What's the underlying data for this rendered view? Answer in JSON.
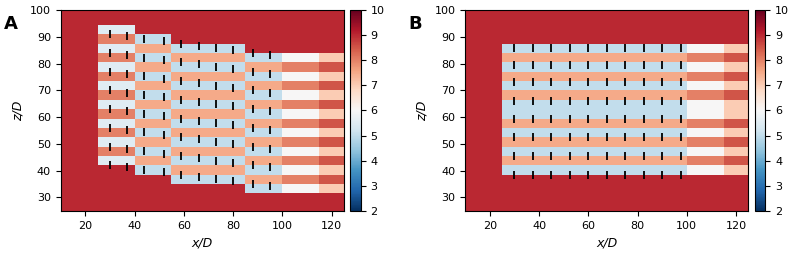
{
  "chart_data": [
    {
      "type": "heatmap",
      "title": "A",
      "x_label": "x/D",
      "y_label": "z/D",
      "xlim": [
        10,
        125
      ],
      "ylim": [
        25,
        100
      ],
      "xticks": [
        20,
        40,
        60,
        80,
        100,
        120
      ],
      "yticks": [
        30,
        40,
        50,
        60,
        70,
        80,
        90,
        100
      ],
      "color": "RdBu_r",
      "colorbar_range": [
        2,
        10
      ],
      "colorbar_ticks": [
        2,
        3,
        4,
        5,
        6,
        7,
        8,
        9,
        10
      ],
      "x_edges": [
        10,
        25,
        40,
        55,
        70,
        85,
        100,
        115,
        125
      ],
      "y_edges": [
        24.5,
        28,
        31.5,
        35,
        38.5,
        42,
        45.5,
        49,
        52.5,
        56,
        59.5,
        63,
        66.5,
        70,
        73.5,
        77,
        80.5,
        84,
        87.5,
        91,
        94.5,
        98,
        101.5
      ],
      "cells": [
        [
          9,
          9,
          9,
          9,
          9,
          9,
          9,
          9
        ],
        [
          9,
          9,
          9,
          9,
          9,
          9,
          9,
          9
        ],
        [
          9,
          9,
          9,
          9,
          9,
          5,
          6,
          7
        ],
        [
          9,
          9,
          9,
          5,
          5,
          7.5,
          8,
          8.5
        ],
        [
          9,
          9,
          5,
          7.5,
          7.5,
          5,
          6,
          7
        ],
        [
          9,
          5.5,
          7.5,
          5,
          5,
          7.5,
          8,
          8.5
        ],
        [
          9,
          8,
          5,
          7.5,
          7.5,
          5,
          6,
          7
        ],
        [
          9,
          5.5,
          7.5,
          5,
          5,
          7.5,
          8,
          8.5
        ],
        [
          9,
          8,
          5,
          7.5,
          7.5,
          5,
          6,
          7
        ],
        [
          9,
          5.5,
          7.5,
          5,
          5,
          7.5,
          8,
          8.5
        ],
        [
          9,
          8,
          5,
          7.5,
          7.5,
          5,
          6,
          7
        ],
        [
          9,
          5.5,
          7.5,
          5,
          5,
          7.5,
          8,
          8.5
        ],
        [
          9,
          8,
          5,
          7.5,
          7.5,
          5,
          6,
          7
        ],
        [
          9,
          5.5,
          7.5,
          5,
          5,
          7.5,
          8,
          8.5
        ],
        [
          9,
          8,
          5,
          7.5,
          7.5,
          5,
          6,
          7
        ],
        [
          9,
          5.5,
          7.5,
          5,
          5,
          7.5,
          8,
          8.5
        ],
        [
          9,
          8,
          5,
          7.5,
          7.5,
          5,
          6,
          7
        ],
        [
          9,
          5.5,
          7.5,
          5,
          5,
          9,
          9,
          9
        ],
        [
          9,
          8,
          5,
          9,
          9,
          9,
          9,
          9
        ],
        [
          9,
          5.5,
          9,
          9,
          9,
          9,
          9,
          9
        ],
        [
          9,
          9,
          9,
          9,
          9,
          9,
          9,
          9
        ],
        [
          9,
          9,
          9,
          9,
          9,
          9,
          9,
          9
        ]
      ],
      "turbines": {
        "marker": "|",
        "color": "#000000",
        "x": [
          30,
          37,
          44,
          52,
          59,
          66,
          73,
          80,
          88,
          95
        ],
        "y": [
          [
            91,
            90.2,
            89.3,
            88.4,
            87.5,
            86.7,
            85.8,
            85,
            84,
            83.2
          ],
          [
            84,
            83.2,
            82.3,
            81.4,
            80.5,
            79.7,
            78.8,
            78,
            77,
            76.2
          ],
          [
            77,
            76.2,
            75.3,
            74.4,
            73.5,
            72.7,
            71.8,
            71,
            70,
            69.2
          ],
          [
            70,
            69.2,
            68.3,
            67.4,
            66.5,
            65.7,
            64.8,
            64,
            63,
            62.2
          ],
          [
            63,
            62.2,
            61.3,
            60.4,
            59.5,
            58.7,
            57.8,
            57,
            56,
            55.2
          ],
          [
            56,
            55.2,
            54.3,
            53.4,
            52.5,
            51.7,
            50.8,
            50,
            49,
            48.2
          ],
          [
            49,
            48.2,
            47.3,
            46.4,
            45.5,
            44.7,
            43.8,
            43,
            42,
            41.2
          ],
          [
            42,
            41.2,
            40.3,
            39.4,
            38.5,
            37.7,
            36.8,
            36,
            35,
            34.2
          ]
        ]
      }
    },
    {
      "type": "heatmap",
      "title": "B",
      "x_label": "x/D",
      "y_label": "z/D",
      "xlim": [
        10,
        125
      ],
      "ylim": [
        25,
        100
      ],
      "xticks": [
        20,
        40,
        60,
        80,
        100,
        120
      ],
      "yticks": [
        30,
        40,
        50,
        60,
        70,
        80,
        90,
        100
      ],
      "color": "RdBu_r",
      "colorbar_range": [
        2,
        10
      ],
      "colorbar_ticks": [
        2,
        3,
        4,
        5,
        6,
        7,
        8,
        9,
        10
      ],
      "x_edges": [
        10,
        25,
        40,
        55,
        70,
        85,
        100,
        115,
        125
      ],
      "y_edges": [
        24.5,
        28,
        31.5,
        35,
        38.5,
        42,
        45.5,
        49,
        52.5,
        56,
        59.5,
        63,
        66.5,
        70,
        73.5,
        77,
        80.5,
        84,
        87.5,
        91,
        94.5,
        98,
        101.5
      ],
      "cells": [
        [
          9,
          9,
          9,
          9,
          9,
          9,
          9,
          9
        ],
        [
          9,
          9,
          9,
          9,
          9,
          9,
          9,
          9
        ],
        [
          9,
          9,
          9,
          9,
          9,
          9,
          9,
          9
        ],
        [
          9,
          9,
          9,
          9,
          9,
          9,
          9,
          9
        ],
        [
          9,
          5,
          5,
          5,
          5,
          5,
          6,
          7
        ],
        [
          9,
          7.5,
          7.5,
          7.5,
          7.5,
          7.5,
          8,
          8.5
        ],
        [
          9,
          5,
          5,
          5,
          5,
          5,
          6,
          7
        ],
        [
          9,
          7.5,
          7.5,
          7.5,
          7.5,
          7.5,
          8,
          8.5
        ],
        [
          9,
          5,
          5,
          5,
          5,
          5,
          6,
          7
        ],
        [
          9,
          7.5,
          7.5,
          7.5,
          7.5,
          7.5,
          8,
          8.5
        ],
        [
          9,
          5,
          5,
          5,
          5,
          5,
          6,
          7
        ],
        [
          9,
          5,
          5,
          5,
          5,
          5,
          6,
          7
        ],
        [
          9,
          7.5,
          7.5,
          7.5,
          7.5,
          7.5,
          8,
          8.5
        ],
        [
          9,
          5,
          5,
          5,
          5,
          5,
          6,
          7
        ],
        [
          9,
          7.5,
          7.5,
          7.5,
          7.5,
          7.5,
          8,
          8.5
        ],
        [
          9,
          5,
          5,
          5,
          5,
          5,
          6,
          7
        ],
        [
          9,
          7.5,
          7.5,
          7.5,
          7.5,
          7.5,
          8,
          8.5
        ],
        [
          9,
          5,
          5,
          5,
          5,
          5,
          6,
          7
        ],
        [
          9,
          9,
          9,
          9,
          9,
          9,
          9,
          9
        ],
        [
          9,
          9,
          9,
          9,
          9,
          9,
          9,
          9
        ],
        [
          9,
          9,
          9,
          9,
          9,
          9,
          9,
          9
        ],
        [
          9,
          9,
          9,
          9,
          9,
          9,
          9,
          9
        ]
      ],
      "turbines": {
        "marker": "|",
        "color": "#000000",
        "x": [
          30,
          37.5,
          45,
          52.5,
          60,
          67.5,
          75,
          82.5,
          90,
          97.5
        ],
        "y": [
          [
            86,
            86,
            86,
            86,
            86,
            86,
            86,
            86,
            86,
            86
          ],
          [
            79.5,
            79.5,
            79.5,
            79.5,
            79.5,
            79.5,
            79.5,
            79.5,
            79.5,
            79.5
          ],
          [
            73,
            73,
            73,
            73,
            73,
            73,
            73,
            73,
            73,
            73
          ],
          [
            66,
            66,
            66,
            66,
            66,
            66,
            66,
            66,
            66,
            66
          ],
          [
            59.5,
            59.5,
            59.5,
            59.5,
            59.5,
            59.5,
            59.5,
            59.5,
            59.5,
            59.5
          ],
          [
            52.5,
            52.5,
            52.5,
            52.5,
            52.5,
            52.5,
            52.5,
            52.5,
            52.5,
            52.5
          ],
          [
            45.5,
            45.5,
            45.5,
            45.5,
            45.5,
            45.5,
            45.5,
            45.5,
            45.5,
            45.5
          ],
          [
            38.5,
            38.5,
            38.5,
            38.5,
            38.5,
            38.5,
            38.5,
            38.5,
            38.5,
            38.5
          ]
        ]
      }
    }
  ]
}
